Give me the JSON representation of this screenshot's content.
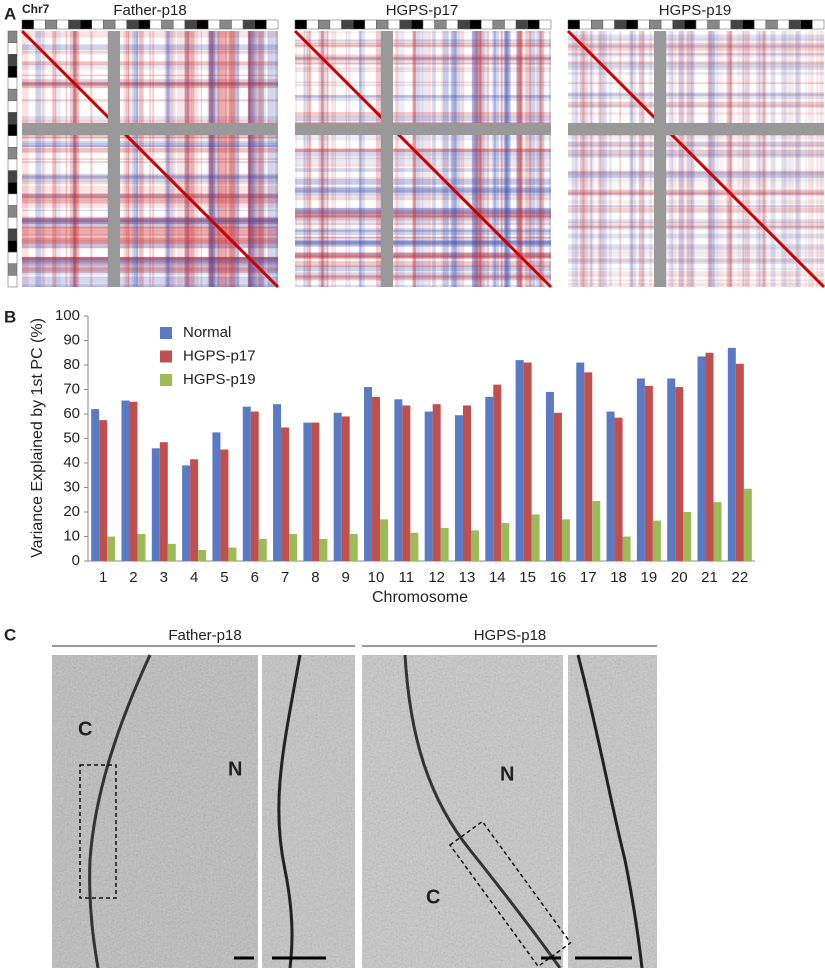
{
  "panel_a": {
    "label": "A",
    "chromosome": "Chr7",
    "titles": [
      "Father-p18",
      "HGPS-p17",
      "HGPS-p19"
    ]
  },
  "chart_data": {
    "type": "bar",
    "panel_label": "B",
    "y_label": "Variance Explained by 1st PC (%)",
    "x_label": "Chromosome",
    "categories": [
      "1",
      "2",
      "3",
      "4",
      "5",
      "6",
      "7",
      "8",
      "9",
      "10",
      "11",
      "12",
      "13",
      "14",
      "15",
      "16",
      "17",
      "18",
      "19",
      "20",
      "21",
      "22"
    ],
    "series": [
      {
        "name": "Normal",
        "color": "#5a7bc4",
        "values": [
          62,
          65.5,
          46,
          39,
          52.5,
          63,
          64,
          56.5,
          60.5,
          71,
          66,
          61,
          59.5,
          67,
          82,
          69,
          81,
          61,
          74.5,
          74.5,
          83.5,
          87
        ]
      },
      {
        "name": "HGPS-p17",
        "color": "#c0504d",
        "values": [
          57.5,
          65,
          48.5,
          41.5,
          45.5,
          61,
          54.5,
          56.5,
          59,
          67,
          63.5,
          64,
          63.5,
          72,
          81,
          60.5,
          77,
          58.5,
          71.5,
          71,
          85,
          80.5
        ]
      },
      {
        "name": "HGPS-p19",
        "color": "#9bbb59",
        "values": [
          10,
          11,
          7,
          4.5,
          5.5,
          9,
          11,
          9,
          11,
          17,
          11.5,
          13.5,
          12.5,
          15.5,
          19,
          17,
          24.5,
          10,
          16.5,
          20,
          24,
          29.5
        ]
      }
    ],
    "ylim": [
      0,
      100
    ],
    "yticks": [
      0,
      10,
      20,
      30,
      40,
      50,
      60,
      70,
      80,
      90,
      100
    ],
    "legend_position": "top-left"
  },
  "panel_c": {
    "label": "C",
    "groups": [
      {
        "title": "Father-p18",
        "labels": [
          "C",
          "N"
        ]
      },
      {
        "title": "HGPS-p18",
        "labels": [
          "N",
          "C"
        ]
      }
    ]
  }
}
